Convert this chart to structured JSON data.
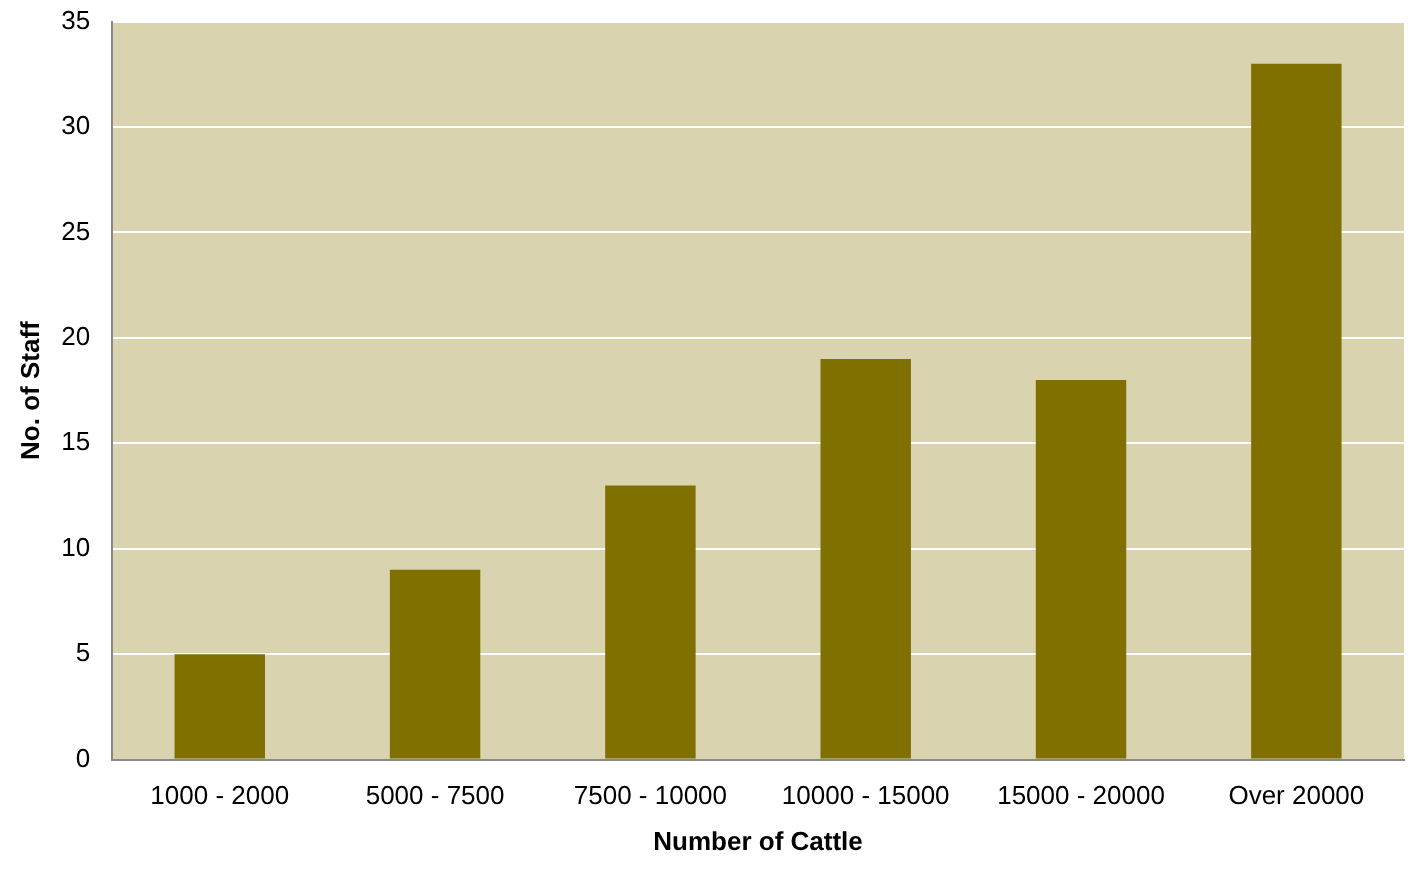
{
  "chart_data": {
    "type": "bar",
    "xlabel": "Number of Cattle",
    "ylabel": "No. of Staff",
    "categories": [
      "1000 - 2000",
      "5000 - 7500",
      "7500 - 10000",
      "10000 - 15000",
      "15000 - 20000",
      "Over 20000"
    ],
    "values": [
      5,
      9,
      13,
      19,
      18,
      33
    ],
    "color": "#7f7000",
    "ylim": [
      0,
      35
    ],
    "yticks": [
      0,
      5,
      10,
      15,
      20,
      25,
      30,
      35
    ],
    "grid": "y",
    "legend": false
  }
}
